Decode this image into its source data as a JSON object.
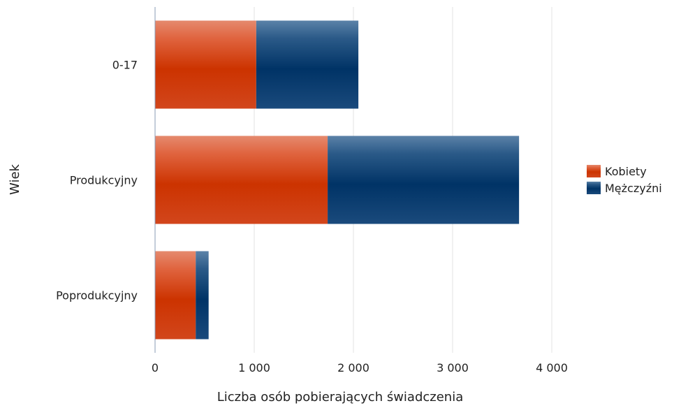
{
  "chart_data": {
    "type": "bar",
    "orientation": "horizontal",
    "stacked": true,
    "categories": [
      "0-17",
      "Produkcyjny",
      "Poprodukcyjny"
    ],
    "series": [
      {
        "name": "Kobiety",
        "values": [
          1020,
          1740,
          410
        ],
        "color": "#cc3300"
      },
      {
        "name": "Mężczyźni",
        "values": [
          1030,
          1930,
          130
        ],
        "color": "#003366"
      }
    ],
    "xlabel": "Liczba osób pobierających świadczenia",
    "ylabel": "Wiek",
    "xlim": [
      0,
      4000
    ],
    "x_ticks": [
      {
        "value": 0,
        "label": "0"
      },
      {
        "value": 1000,
        "label": "1 000"
      },
      {
        "value": 2000,
        "label": "2 000"
      },
      {
        "value": 3000,
        "label": "3 000"
      },
      {
        "value": 4000,
        "label": "4 000"
      }
    ],
    "grid": "vertical",
    "legend_position": "right"
  }
}
